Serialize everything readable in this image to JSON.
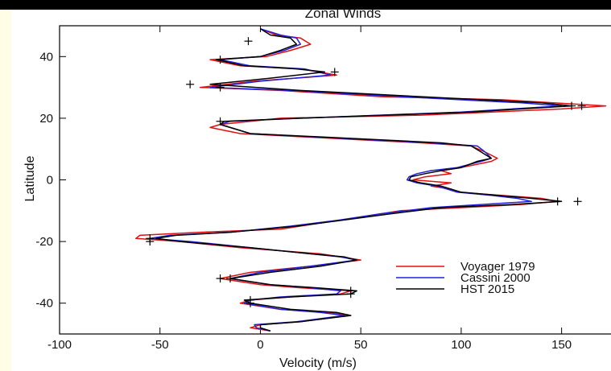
{
  "chart_data": {
    "type": "line",
    "title": "Zonal Winds",
    "xlabel": "Velocity (m/s)",
    "ylabel": "Latitude",
    "xlim": [
      -100,
      175
    ],
    "ylim": [
      -50,
      50
    ],
    "x_ticks": [
      -100,
      -50,
      0,
      50,
      100,
      150
    ],
    "y_ticks": [
      -40,
      -20,
      0,
      20,
      40
    ],
    "grid": false,
    "legend_position": "lower-right",
    "series": [
      {
        "name": "Voyager 1979",
        "color": "#e01010",
        "points": [
          [
            0,
            49
          ],
          [
            8,
            47
          ],
          [
            20,
            46
          ],
          [
            25,
            44
          ],
          [
            15,
            42
          ],
          [
            3,
            40
          ],
          [
            -25,
            39
          ],
          [
            -10,
            37
          ],
          [
            20,
            36
          ],
          [
            38,
            34
          ],
          [
            -3,
            32
          ],
          [
            -30,
            30
          ],
          [
            10,
            29
          ],
          [
            60,
            27
          ],
          [
            120,
            26
          ],
          [
            172,
            24
          ],
          [
            150,
            23
          ],
          [
            80,
            21
          ],
          [
            10,
            20
          ],
          [
            -20,
            18
          ],
          [
            -25,
            17
          ],
          [
            -10,
            15
          ],
          [
            20,
            14
          ],
          [
            50,
            13
          ],
          [
            80,
            12
          ],
          [
            105,
            11
          ],
          [
            112,
            9
          ],
          [
            118,
            7
          ],
          [
            115,
            6
          ],
          [
            100,
            4
          ],
          [
            90,
            3
          ],
          [
            95,
            2
          ],
          [
            82,
            1
          ],
          [
            76,
            0
          ],
          [
            95,
            -1
          ],
          [
            85,
            -2
          ],
          [
            95,
            -3
          ],
          [
            98,
            -4
          ],
          [
            120,
            -5
          ],
          [
            140,
            -6
          ],
          [
            148,
            -7
          ],
          [
            130,
            -8
          ],
          [
            100,
            -9
          ],
          [
            70,
            -10
          ],
          [
            50,
            -12
          ],
          [
            30,
            -14
          ],
          [
            10,
            -16
          ],
          [
            -30,
            -17
          ],
          [
            -60,
            -18
          ],
          [
            -62,
            -19
          ],
          [
            -40,
            -20
          ],
          [
            -10,
            -22
          ],
          [
            30,
            -24
          ],
          [
            40,
            -25
          ],
          [
            50,
            -26
          ],
          [
            25,
            -28
          ],
          [
            -5,
            -30
          ],
          [
            -20,
            -32
          ],
          [
            0,
            -34
          ],
          [
            20,
            -35
          ],
          [
            45,
            -36
          ],
          [
            40,
            -37
          ],
          [
            15,
            -38
          ],
          [
            -5,
            -39
          ],
          [
            -10,
            -40
          ],
          [
            10,
            -42
          ],
          [
            35,
            -43
          ],
          [
            45,
            -44
          ],
          [
            20,
            -46
          ],
          [
            0,
            -47
          ],
          [
            -5,
            -48
          ],
          [
            5,
            -49
          ]
        ]
      },
      {
        "name": "Cassini 2000",
        "color": "#2020e0",
        "points": [
          [
            0,
            49
          ],
          [
            10,
            47
          ],
          [
            18,
            46
          ],
          [
            20,
            44
          ],
          [
            12,
            42
          ],
          [
            0,
            40
          ],
          [
            -20,
            39
          ],
          [
            -5,
            37
          ],
          [
            22,
            36
          ],
          [
            35,
            34
          ],
          [
            0,
            32
          ],
          [
            -25,
            30
          ],
          [
            15,
            29
          ],
          [
            70,
            27
          ],
          [
            130,
            25
          ],
          [
            150,
            24
          ],
          [
            100,
            22
          ],
          [
            20,
            20
          ],
          [
            -15,
            19
          ],
          [
            -20,
            18
          ],
          [
            -5,
            15
          ],
          [
            25,
            14
          ],
          [
            55,
            13
          ],
          [
            85,
            12
          ],
          [
            108,
            11
          ],
          [
            112,
            9
          ],
          [
            115,
            7
          ],
          [
            110,
            6
          ],
          [
            98,
            4
          ],
          [
            85,
            3
          ],
          [
            78,
            2
          ],
          [
            74,
            1
          ],
          [
            73,
            0
          ],
          [
            78,
            -1
          ],
          [
            88,
            -2
          ],
          [
            98,
            -4
          ],
          [
            115,
            -5
          ],
          [
            128,
            -6
          ],
          [
            135,
            -7
          ],
          [
            110,
            -8
          ],
          [
            85,
            -9
          ],
          [
            60,
            -11
          ],
          [
            40,
            -13
          ],
          [
            15,
            -15
          ],
          [
            -15,
            -17
          ],
          [
            -45,
            -18
          ],
          [
            -55,
            -19
          ],
          [
            -35,
            -20
          ],
          [
            -5,
            -22
          ],
          [
            25,
            -24
          ],
          [
            40,
            -25
          ],
          [
            48,
            -26
          ],
          [
            25,
            -28
          ],
          [
            0,
            -30
          ],
          [
            -15,
            -32
          ],
          [
            5,
            -34
          ],
          [
            25,
            -35
          ],
          [
            40,
            -36
          ],
          [
            38,
            -37
          ],
          [
            10,
            -38
          ],
          [
            -5,
            -39
          ],
          [
            -8,
            -40
          ],
          [
            10,
            -42
          ],
          [
            30,
            -43
          ],
          [
            42,
            -44
          ],
          [
            18,
            -46
          ],
          [
            -3,
            -47
          ],
          [
            -2,
            -48
          ],
          [
            5,
            -49
          ]
        ]
      },
      {
        "name": "HST 2015",
        "color": "#000000",
        "points": [
          [
            0,
            49
          ],
          [
            5,
            47
          ],
          [
            15,
            46
          ],
          [
            18,
            44
          ],
          [
            10,
            42
          ],
          [
            0,
            40
          ],
          [
            -22,
            39
          ],
          [
            -8,
            37
          ],
          [
            18,
            36
          ],
          [
            32,
            35
          ],
          [
            5,
            33
          ],
          [
            -25,
            31
          ],
          [
            20,
            29
          ],
          [
            80,
            27
          ],
          [
            140,
            25
          ],
          [
            155,
            24
          ],
          [
            105,
            22
          ],
          [
            20,
            20
          ],
          [
            -18,
            19
          ],
          [
            -20,
            18
          ],
          [
            -5,
            15
          ],
          [
            28,
            14
          ],
          [
            60,
            13
          ],
          [
            90,
            12
          ],
          [
            105,
            11
          ],
          [
            110,
            9
          ],
          [
            115,
            7
          ],
          [
            108,
            6
          ],
          [
            100,
            4
          ],
          [
            90,
            3
          ],
          [
            82,
            2
          ],
          [
            75,
            1
          ],
          [
            74,
            0
          ],
          [
            80,
            -1
          ],
          [
            90,
            -2
          ],
          [
            100,
            -4
          ],
          [
            118,
            -5
          ],
          [
            135,
            -6
          ],
          [
            150,
            -7
          ],
          [
            125,
            -8
          ],
          [
            90,
            -9
          ],
          [
            65,
            -11
          ],
          [
            42,
            -13
          ],
          [
            18,
            -15
          ],
          [
            -15,
            -17
          ],
          [
            -42,
            -18
          ],
          [
            -52,
            -19
          ],
          [
            -40,
            -20
          ],
          [
            -5,
            -22
          ],
          [
            25,
            -24
          ],
          [
            42,
            -25
          ],
          [
            48,
            -26
          ],
          [
            30,
            -28
          ],
          [
            5,
            -30
          ],
          [
            -15,
            -32
          ],
          [
            5,
            -34
          ],
          [
            28,
            -35
          ],
          [
            48,
            -36
          ],
          [
            45,
            -37
          ],
          [
            15,
            -38
          ],
          [
            -8,
            -39
          ],
          [
            -5,
            -40
          ],
          [
            15,
            -42
          ],
          [
            38,
            -43
          ],
          [
            45,
            -44
          ],
          [
            20,
            -46
          ],
          [
            0,
            -47
          ],
          [
            0,
            -48
          ],
          [
            5,
            -49
          ]
        ]
      }
    ],
    "markers": {
      "symbol": "+",
      "color": "#000000",
      "points": [
        [
          -6,
          45
        ],
        [
          -20,
          39
        ],
        [
          -35,
          31
        ],
        [
          -20,
          30
        ],
        [
          37,
          35
        ],
        [
          155,
          24
        ],
        [
          160,
          24
        ],
        [
          -20,
          19
        ],
        [
          158,
          -7
        ],
        [
          148,
          -7
        ],
        [
          -55,
          -19
        ],
        [
          -55,
          -20
        ],
        [
          -20,
          -32
        ],
        [
          -15,
          -32
        ],
        [
          45,
          -36
        ],
        [
          45,
          -37
        ],
        [
          -5,
          -39
        ],
        [
          -5,
          -40
        ]
      ]
    }
  }
}
